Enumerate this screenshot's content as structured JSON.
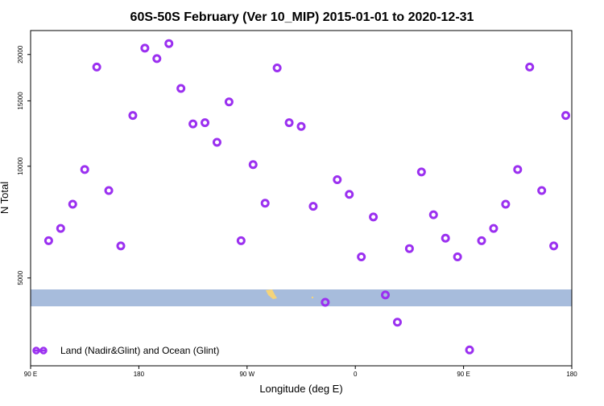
{
  "chart_data": {
    "type": "scatter",
    "title": "60S-50S February (Ver 10_MIP)   2015-01-01 to 2020-12-31",
    "x_label": "Longitude (deg E)",
    "y_label": "N Total",
    "log_y": true,
    "legend_position": "lower left",
    "xlim": [
      90,
      540
    ],
    "ylim": [
      2900,
      23200
    ],
    "xticks": [
      {
        "value": 90,
        "label": "90 E"
      },
      180,
      {
        "value": 270,
        "label": "90 W"
      },
      {
        "value": 360,
        "label": "0"
      },
      {
        "value": 450,
        "label": "90 E"
      },
      {
        "value": 540,
        "label": "180"
      }
    ],
    "yticks": [
      5000,
      10000,
      15000,
      20000
    ],
    "series": [
      {
        "name": "Land (Nadir&Glint) and Ocean (Glint)",
        "color": "#9b30f0",
        "x": [
          105,
          115,
          125,
          135,
          145,
          155,
          165,
          175,
          185,
          195,
          205,
          215,
          225,
          235,
          245,
          255,
          265,
          275,
          285,
          295,
          305,
          315,
          325,
          335,
          345,
          355,
          365,
          375,
          385,
          395,
          405,
          415,
          425,
          435,
          445,
          455,
          465,
          475,
          485,
          495,
          505,
          515,
          525,
          535
        ],
        "values": [
          6300,
          6800,
          7900,
          9800,
          18500,
          8600,
          6100,
          13700,
          20800,
          19500,
          21400,
          16200,
          13000,
          13100,
          11600,
          14900,
          6300,
          10100,
          7950,
          18400,
          13100,
          12800,
          7800,
          4300,
          9200,
          8400,
          5700,
          7300,
          4500,
          3800,
          6000,
          9650,
          7400,
          6400,
          5700,
          3200,
          6300,
          6800,
          7900,
          9800,
          18500,
          8600,
          6100,
          13700
        ]
      }
    ]
  }
}
